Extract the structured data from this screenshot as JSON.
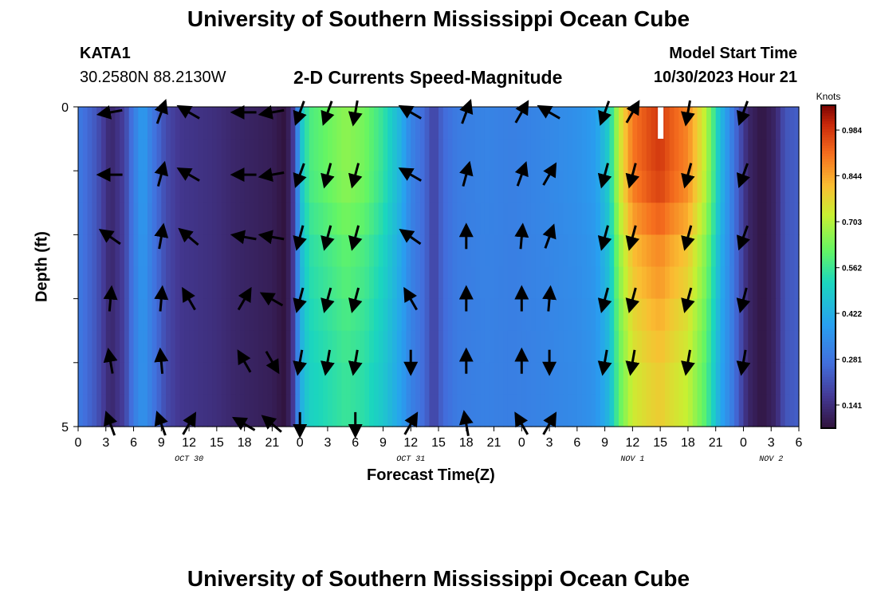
{
  "header": {
    "title": "University of Southern Mississippi Ocean Cube",
    "station": "KATA1",
    "coords": "30.2580N  88.2130W",
    "product": "2-D Currents Speed-Magnitude",
    "model_start_label": "Model Start Time",
    "model_start_value": "10/30/2023 Hour 21"
  },
  "footer": {
    "title_repeat": "University of Southern Mississippi Ocean Cube"
  },
  "chart_data": {
    "type": "heatmap",
    "title": "2-D Currents Speed-Magnitude",
    "xlabel": "Forecast Time(Z)",
    "ylabel": "Depth (ft)",
    "x_ticks": [
      "0",
      "3",
      "6",
      "9",
      "12",
      "15",
      "18",
      "21",
      "0",
      "3",
      "6",
      "9",
      "12",
      "15",
      "18",
      "21",
      "0",
      "3",
      "6",
      "9",
      "12",
      "15",
      "18",
      "21",
      "0",
      "3",
      "6"
    ],
    "date_labels": [
      {
        "label": "OCT 30",
        "hour_index": 12
      },
      {
        "label": "OCT 31",
        "hour_index": 36
      },
      {
        "label": "NOV 1",
        "hour_index": 60
      },
      {
        "label": "NOV 2",
        "hour_index": 75
      }
    ],
    "x_range_hours": [
      0,
      78
    ],
    "depth_range_ft": [
      0,
      5
    ],
    "depth_labels": [
      "0",
      "5"
    ],
    "colorbar": {
      "unit": "Knots",
      "range": [
        0.07,
        1.06
      ],
      "ticks": [
        "0.984",
        "0.844",
        "0.703",
        "0.562",
        "0.422",
        "0.281",
        "0.141"
      ],
      "tick_values": [
        0.984,
        0.844,
        0.703,
        0.562,
        0.422,
        0.281,
        0.141
      ]
    },
    "speed_by_hour_surface": [
      {
        "h": 0,
        "v": 0.3
      },
      {
        "h": 2,
        "v": 0.22
      },
      {
        "h": 3.5,
        "v": 0.12
      },
      {
        "h": 5,
        "v": 0.18
      },
      {
        "h": 6,
        "v": 0.3
      },
      {
        "h": 7,
        "v": 0.38
      },
      {
        "h": 8,
        "v": 0.3
      },
      {
        "h": 9.5,
        "v": 0.2
      },
      {
        "h": 11,
        "v": 0.16
      },
      {
        "h": 13,
        "v": 0.15
      },
      {
        "h": 15,
        "v": 0.14
      },
      {
        "h": 17,
        "v": 0.12
      },
      {
        "h": 19,
        "v": 0.11
      },
      {
        "h": 21,
        "v": 0.1
      },
      {
        "h": 22.5,
        "v": 0.07
      },
      {
        "h": 23.5,
        "v": 0.2
      },
      {
        "h": 24,
        "v": 0.45
      },
      {
        "h": 25,
        "v": 0.58
      },
      {
        "h": 27,
        "v": 0.62
      },
      {
        "h": 29,
        "v": 0.66
      },
      {
        "h": 31,
        "v": 0.63
      },
      {
        "h": 33,
        "v": 0.55
      },
      {
        "h": 35,
        "v": 0.42
      },
      {
        "h": 36,
        "v": 0.32
      },
      {
        "h": 37.5,
        "v": 0.26
      },
      {
        "h": 38.5,
        "v": 0.18
      },
      {
        "h": 39.5,
        "v": 0.26
      },
      {
        "h": 41,
        "v": 0.3
      },
      {
        "h": 44,
        "v": 0.32
      },
      {
        "h": 47,
        "v": 0.31
      },
      {
        "h": 51,
        "v": 0.33
      },
      {
        "h": 54,
        "v": 0.35
      },
      {
        "h": 56,
        "v": 0.38
      },
      {
        "h": 57.5,
        "v": 0.5
      },
      {
        "h": 58.5,
        "v": 0.72
      },
      {
        "h": 60,
        "v": 0.9
      },
      {
        "h": 62,
        "v": 0.96
      },
      {
        "h": 63,
        "v": 0.98
      },
      {
        "h": 64,
        "v": 0.94
      },
      {
        "h": 66,
        "v": 0.88
      },
      {
        "h": 68,
        "v": 0.7
      },
      {
        "h": 69.5,
        "v": 0.45
      },
      {
        "h": 71,
        "v": 0.28
      },
      {
        "h": 72.5,
        "v": 0.12
      },
      {
        "h": 74,
        "v": 0.08
      },
      {
        "h": 75.5,
        "v": 0.12
      },
      {
        "h": 76.5,
        "v": 0.22
      },
      {
        "h": 78,
        "v": 0.24
      }
    ],
    "depth_factors": [
      1.0,
      1.0,
      0.98,
      0.92,
      0.85,
      0.82,
      0.78,
      0.75,
      0.72,
      0.72
    ],
    "arrow_hours": [
      3.5,
      6,
      9,
      12,
      18,
      21,
      24,
      27,
      30,
      33,
      36,
      39,
      42,
      45,
      48,
      51,
      54,
      57,
      60,
      63,
      66,
      69,
      72
    ],
    "arrow_depth_levels": [
      0,
      1,
      2,
      3,
      4,
      5
    ],
    "arrow_series": [
      {
        "depth_level": 0,
        "dirs_deg": [
          260,
          null,
          20,
          300,
          270,
          260,
          200,
          200,
          190,
          null,
          300,
          null,
          20,
          null,
          30,
          300,
          null,
          200,
          30,
          null,
          190,
          null,
          200
        ]
      },
      {
        "depth_level": 1,
        "dirs_deg": [
          270,
          null,
          15,
          300,
          270,
          260,
          200,
          195,
          195,
          null,
          300,
          null,
          15,
          null,
          20,
          30,
          null,
          195,
          195,
          null,
          195,
          null,
          200
        ]
      },
      {
        "depth_level": 2,
        "dirs_deg": [
          305,
          null,
          10,
          310,
          280,
          280,
          195,
          195,
          195,
          null,
          305,
          null,
          0,
          null,
          5,
          20,
          null,
          195,
          195,
          null,
          195,
          null,
          200
        ]
      },
      {
        "depth_level": 3,
        "dirs_deg": [
          5,
          null,
          5,
          330,
          30,
          300,
          195,
          195,
          195,
          null,
          330,
          null,
          0,
          null,
          0,
          5,
          null,
          195,
          195,
          null,
          195,
          null,
          195
        ]
      },
      {
        "depth_level": 4,
        "dirs_deg": [
          350,
          null,
          355,
          null,
          330,
          150,
          190,
          190,
          190,
          null,
          180,
          null,
          0,
          null,
          0,
          180,
          null,
          190,
          190,
          null,
          190,
          null,
          190
        ]
      },
      {
        "depth_level": 5,
        "dirs_deg": [
          340,
          null,
          340,
          30,
          300,
          310,
          180,
          null,
          180,
          null,
          30,
          null,
          350,
          null,
          330,
          30,
          null,
          null,
          null,
          null,
          null,
          null,
          null
        ]
      }
    ],
    "white_gap_hour": 63
  }
}
